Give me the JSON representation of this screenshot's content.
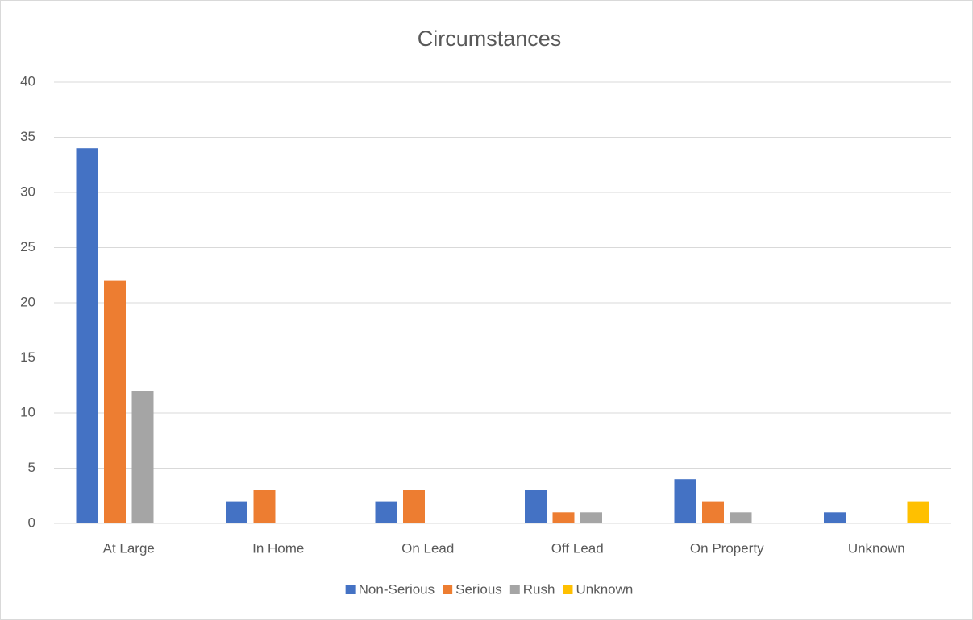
{
  "chart_data": {
    "type": "bar",
    "title": "Circumstances",
    "categories": [
      "At Large",
      "In Home",
      "On Lead",
      "Off Lead",
      "On Property",
      "Unknown"
    ],
    "series": [
      {
        "name": "Non-Serious",
        "color": "#4472c4",
        "values": [
          34,
          2,
          2,
          3,
          4,
          1
        ]
      },
      {
        "name": "Serious",
        "color": "#ed7d31",
        "values": [
          22,
          3,
          3,
          1,
          2,
          0
        ]
      },
      {
        "name": "Rush",
        "color": "#a5a5a5",
        "values": [
          12,
          0,
          0,
          1,
          1,
          0
        ]
      },
      {
        "name": "Unknown",
        "color": "#ffc000",
        "values": [
          0,
          0,
          0,
          0,
          0,
          2
        ]
      }
    ],
    "ylim": [
      0,
      40
    ],
    "yticks": [
      0,
      5,
      10,
      15,
      20,
      25,
      30,
      35,
      40
    ],
    "grid": true,
    "legend": "bottom"
  }
}
